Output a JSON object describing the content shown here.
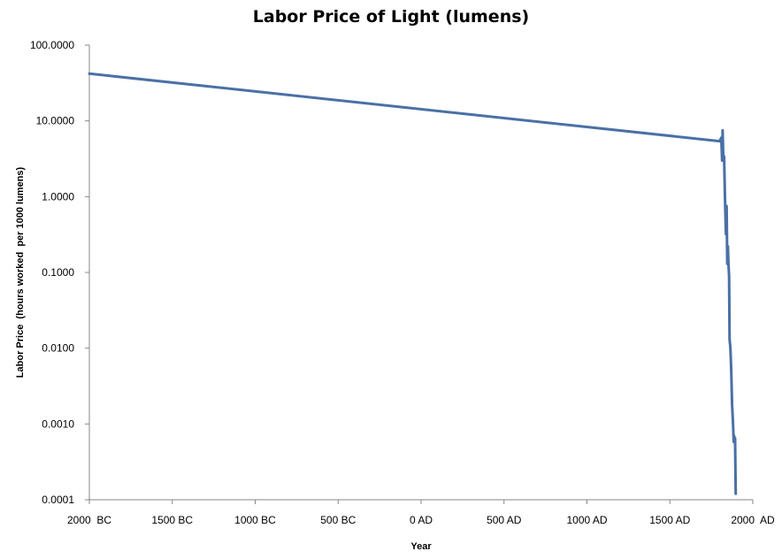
{
  "chart_data": {
    "type": "line",
    "title": "Labor Price of Light (lumens)",
    "xlabel": "Year",
    "ylabel": "Labor Price  (hours worked  per 1000 lumens)",
    "yscale": "log",
    "ylim": [
      0.0001,
      100
    ],
    "xlim": [
      -2000,
      2000
    ],
    "grid": false,
    "legend": "none",
    "line_color": "#4a70a6",
    "x_ticks": [
      {
        "value": -2000,
        "label": "2000  BC"
      },
      {
        "value": -1500,
        "label": "1500 BC"
      },
      {
        "value": -1000,
        "label": "1000 BC"
      },
      {
        "value": -500,
        "label": "500 BC"
      },
      {
        "value": 0,
        "label": "0 AD"
      },
      {
        "value": 500,
        "label": "500 AD"
      },
      {
        "value": 1000,
        "label": "1000 AD"
      },
      {
        "value": 1500,
        "label": "1500 AD"
      },
      {
        "value": 2000,
        "label": "2000  AD"
      }
    ],
    "y_ticks": [
      {
        "value": 100,
        "label": "100.0000"
      },
      {
        "value": 10,
        "label": "10.0000"
      },
      {
        "value": 1,
        "label": "1.0000"
      },
      {
        "value": 0.1,
        "label": "0.1000"
      },
      {
        "value": 0.01,
        "label": "0.0100"
      },
      {
        "value": 0.001,
        "label": "0.0010"
      },
      {
        "value": 0.0001,
        "label": "0.0001"
      }
    ],
    "series": [
      {
        "points": [
          [
            -2000,
            42
          ],
          [
            1800,
            5.4
          ],
          [
            1810,
            6.0
          ],
          [
            1815,
            3.0
          ],
          [
            1818,
            7.5
          ],
          [
            1822,
            3.2
          ],
          [
            1827,
            3.4
          ],
          [
            1832,
            1.0
          ],
          [
            1838,
            0.32
          ],
          [
            1842,
            0.75
          ],
          [
            1846,
            0.13
          ],
          [
            1850,
            0.22
          ],
          [
            1853,
            0.13
          ],
          [
            1857,
            0.09
          ],
          [
            1860,
            0.013
          ],
          [
            1865,
            0.01
          ],
          [
            1870,
            0.005
          ],
          [
            1875,
            0.0018
          ],
          [
            1880,
            0.0011
          ],
          [
            1885,
            0.00058
          ],
          [
            1887,
            0.0007
          ],
          [
            1890,
            0.00063
          ],
          [
            1893,
            0.00065
          ],
          [
            1897,
            0.00012
          ]
        ]
      }
    ]
  }
}
